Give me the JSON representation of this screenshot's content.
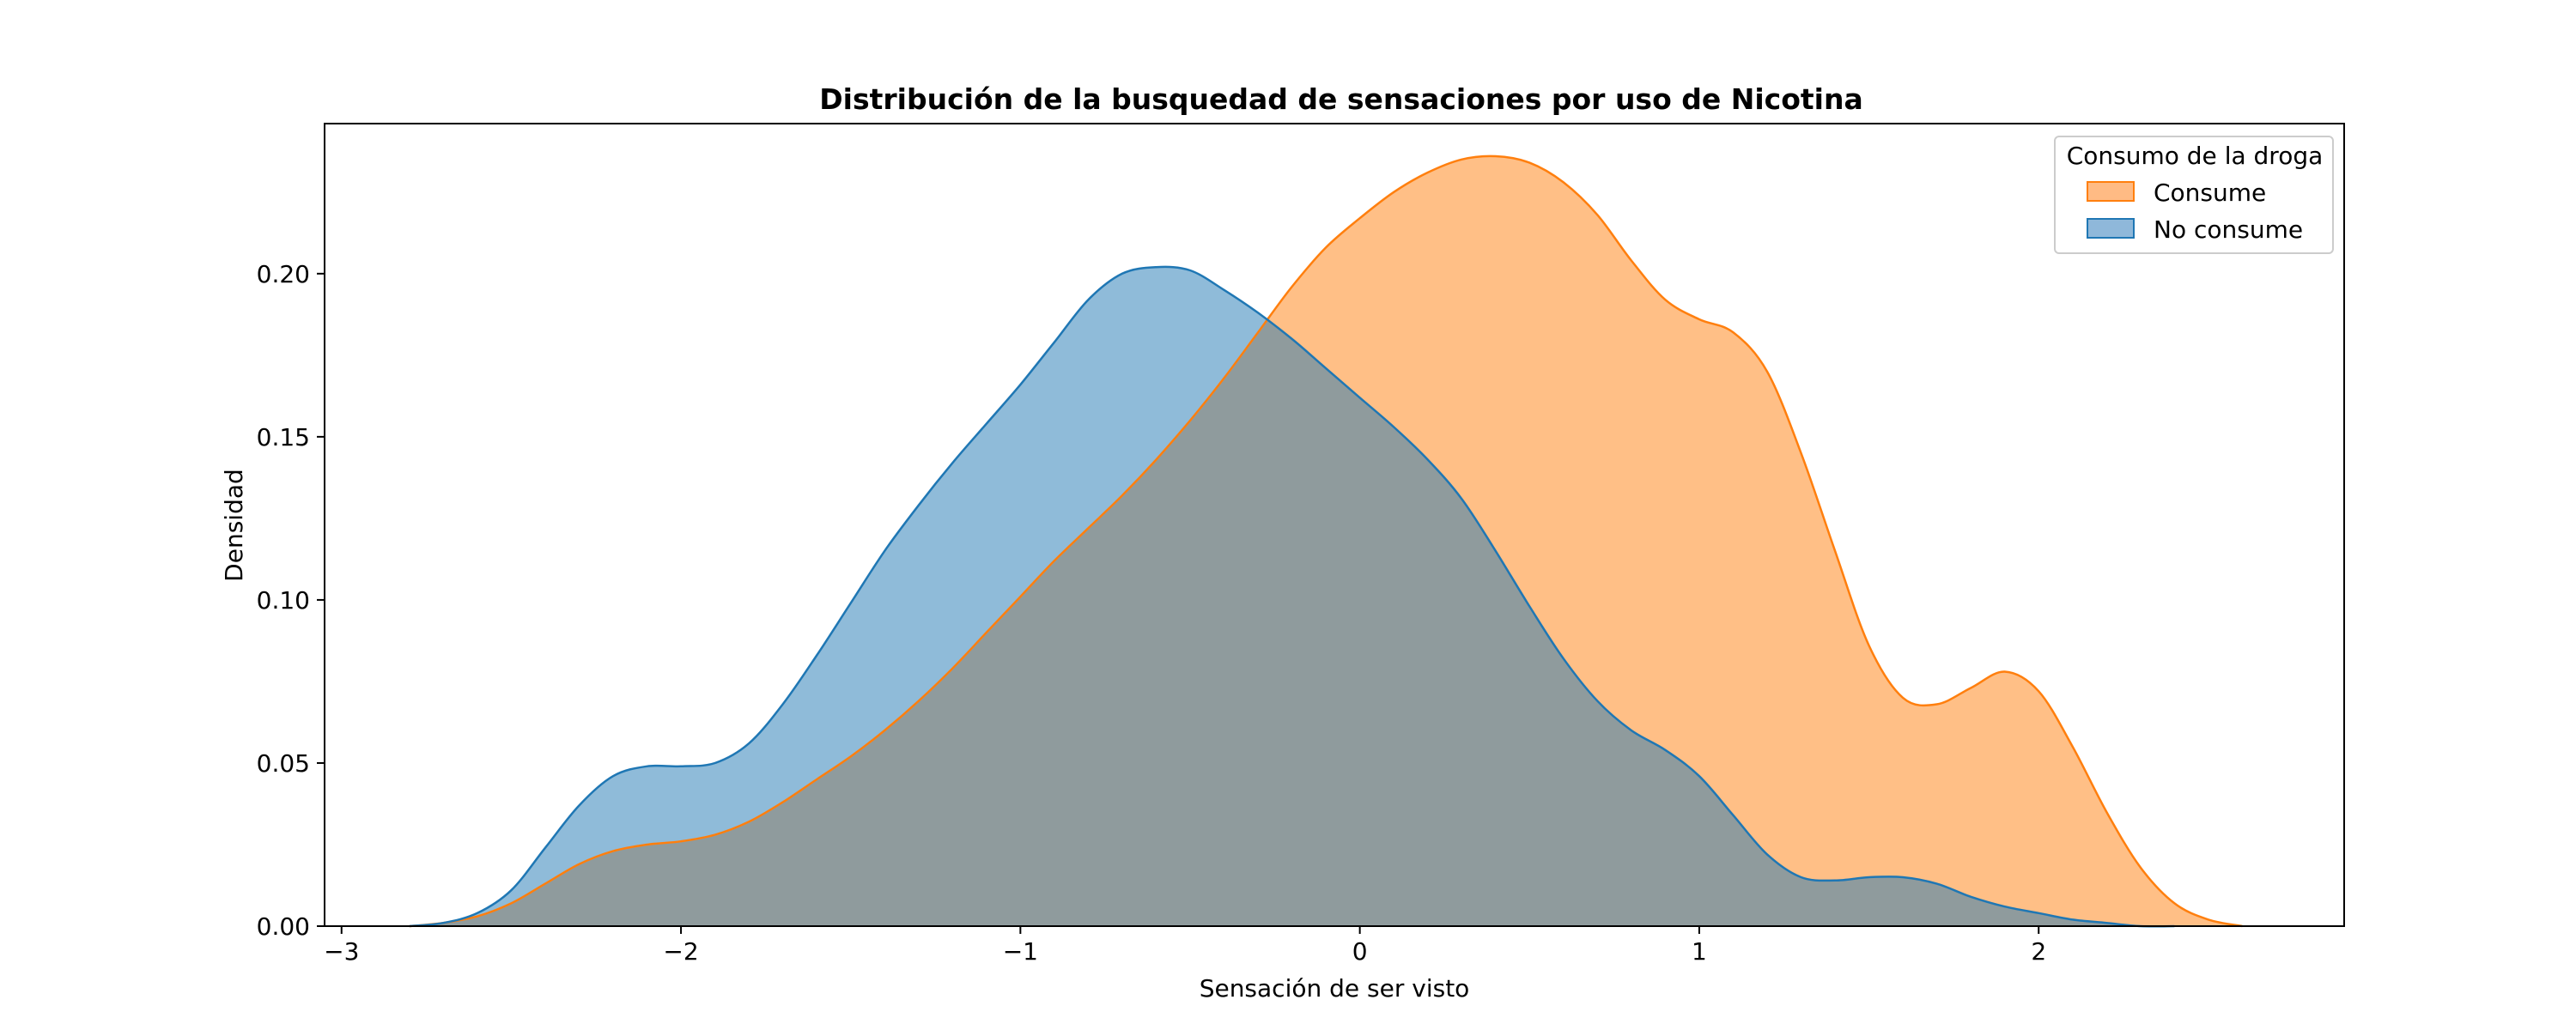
{
  "chart_data": {
    "type": "area",
    "title": "Distribución de la busquedad de sensaciones por uso de Nicotina",
    "xlabel": "Sensación de ser visto",
    "ylabel": "Densidad",
    "xlim": [
      -3.05,
      2.9
    ],
    "ylim": [
      0,
      0.246
    ],
    "xticks": [
      -3,
      -2,
      -1,
      0,
      1,
      2
    ],
    "xtick_labels": [
      "−3",
      "−2",
      "−1",
      "0",
      "1",
      "2"
    ],
    "yticks": [
      0,
      0.05,
      0.1,
      0.15,
      0.2
    ],
    "ytick_labels": [
      "0.00",
      "0.05",
      "0.10",
      "0.15",
      "0.20"
    ],
    "grid": false,
    "legend": {
      "title": "Consumo de la droga",
      "position": "top-right"
    },
    "series": [
      {
        "name": "Consume",
        "color": "#ff7f0e",
        "fill_color": "#ffbb84",
        "x": [
          -2.8,
          -2.7,
          -2.6,
          -2.5,
          -2.4,
          -2.3,
          -2.2,
          -2.1,
          -2.0,
          -1.9,
          -1.8,
          -1.7,
          -1.6,
          -1.5,
          -1.4,
          -1.3,
          -1.2,
          -1.1,
          -1.0,
          -0.9,
          -0.8,
          -0.7,
          -0.6,
          -0.5,
          -0.4,
          -0.3,
          -0.2,
          -0.1,
          0.0,
          0.1,
          0.2,
          0.3,
          0.4,
          0.5,
          0.6,
          0.7,
          0.8,
          0.9,
          1.0,
          1.1,
          1.2,
          1.3,
          1.4,
          1.5,
          1.6,
          1.7,
          1.8,
          1.9,
          2.0,
          2.1,
          2.2,
          2.3,
          2.4,
          2.5,
          2.6
        ],
        "y": [
          0.0,
          0.001,
          0.003,
          0.007,
          0.013,
          0.019,
          0.023,
          0.025,
          0.026,
          0.028,
          0.032,
          0.038,
          0.045,
          0.052,
          0.06,
          0.069,
          0.079,
          0.09,
          0.101,
          0.112,
          0.122,
          0.132,
          0.143,
          0.155,
          0.168,
          0.182,
          0.196,
          0.208,
          0.217,
          0.225,
          0.231,
          0.235,
          0.236,
          0.234,
          0.228,
          0.218,
          0.204,
          0.192,
          0.186,
          0.182,
          0.17,
          0.145,
          0.115,
          0.086,
          0.07,
          0.068,
          0.073,
          0.078,
          0.072,
          0.055,
          0.035,
          0.018,
          0.007,
          0.002,
          0.0
        ]
      },
      {
        "name": "No consume",
        "color": "#1f77b4",
        "fill_color": "#8fb8da",
        "x": [
          -2.8,
          -2.7,
          -2.6,
          -2.5,
          -2.4,
          -2.3,
          -2.2,
          -2.1,
          -2.0,
          -1.9,
          -1.8,
          -1.7,
          -1.6,
          -1.5,
          -1.4,
          -1.3,
          -1.2,
          -1.1,
          -1.0,
          -0.9,
          -0.8,
          -0.7,
          -0.6,
          -0.5,
          -0.4,
          -0.3,
          -0.2,
          -0.1,
          0.0,
          0.1,
          0.2,
          0.3,
          0.4,
          0.5,
          0.6,
          0.7,
          0.8,
          0.9,
          1.0,
          1.1,
          1.2,
          1.3,
          1.4,
          1.5,
          1.6,
          1.7,
          1.8,
          1.9,
          2.0,
          2.1,
          2.2,
          2.3,
          2.4
        ],
        "y": [
          0.0,
          0.001,
          0.004,
          0.011,
          0.024,
          0.037,
          0.046,
          0.049,
          0.049,
          0.05,
          0.056,
          0.068,
          0.083,
          0.099,
          0.115,
          0.129,
          0.142,
          0.154,
          0.166,
          0.179,
          0.192,
          0.2,
          0.202,
          0.201,
          0.195,
          0.188,
          0.18,
          0.171,
          0.162,
          0.153,
          0.143,
          0.131,
          0.115,
          0.098,
          0.082,
          0.069,
          0.06,
          0.054,
          0.046,
          0.034,
          0.022,
          0.015,
          0.014,
          0.015,
          0.015,
          0.013,
          0.009,
          0.006,
          0.004,
          0.002,
          0.001,
          0.0,
          0.0
        ]
      }
    ]
  }
}
